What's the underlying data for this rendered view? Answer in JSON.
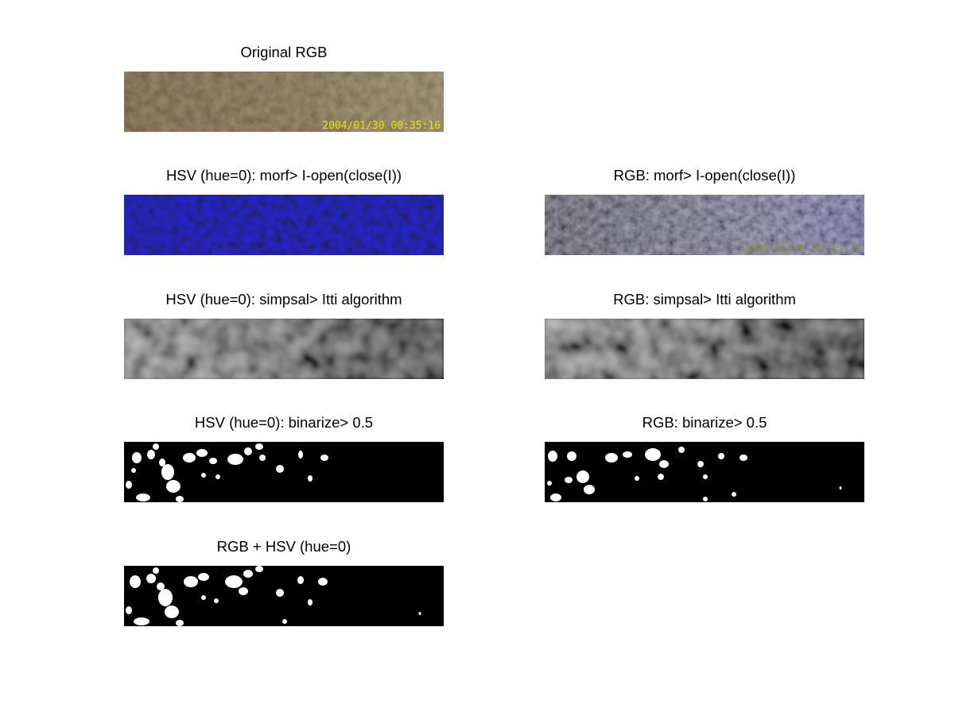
{
  "panels": {
    "original": {
      "title": "Original RGB",
      "timestamp_overlay": "2004/01/30 00:35:16",
      "overlay_color": "#e6e600",
      "base_color": "#8a7250"
    },
    "hsv_morf": {
      "title": "HSV (hue=0): morf> I-open(close(I))",
      "base_color": "#1a1a8c"
    },
    "rgb_morf": {
      "title": "RGB: morf> I-open(close(I))",
      "timestamp_overlay": "2004/01/30 00:35:16",
      "overlay_color": "#8c9a30",
      "base_color": "#6e6e78"
    },
    "hsv_saliency": {
      "title": "HSV (hue=0): simpsal> Itti algorithm"
    },
    "rgb_saliency": {
      "title": "RGB: simpsal> Itti algorithm"
    },
    "hsv_binarize": {
      "title": "HSV (hue=0): binarize> 0.5"
    },
    "rgb_binarize": {
      "title": "RGB: binarize> 0.5"
    },
    "combined": {
      "title": "RGB + HSV (hue=0)"
    }
  }
}
